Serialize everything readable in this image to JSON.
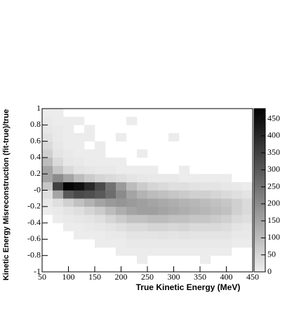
{
  "chart_data": {
    "type": "heatmap",
    "xlabel": "True Kinetic Energy (MeV)",
    "ylabel": "Kinetic Energy Misreconstruction (fit-true)/true",
    "xbins": [
      50,
      70,
      90,
      110,
      130,
      150,
      170,
      190,
      210,
      230,
      250,
      270,
      290,
      310,
      330,
      350,
      370,
      390,
      410,
      430,
      450
    ],
    "ybins": [
      -1,
      -0.9,
      -0.8,
      -0.7,
      -0.6,
      -0.5,
      -0.4,
      -0.3,
      -0.2,
      -0.1,
      0,
      0.1,
      0.2,
      0.3,
      0.4,
      0.5,
      0.6,
      0.7,
      0.8,
      0.9,
      1
    ],
    "values": [
      [
        0,
        0,
        0,
        0,
        0,
        0,
        0,
        0,
        0,
        0,
        0,
        0,
        0,
        0,
        0,
        0,
        0,
        0,
        0,
        0
      ],
      [
        0,
        0,
        0,
        0,
        0,
        0,
        0,
        0,
        0,
        5,
        0,
        0,
        0,
        0,
        0,
        5,
        0,
        0,
        0,
        0
      ],
      [
        0,
        0,
        0,
        0,
        0,
        0,
        0,
        5,
        5,
        5,
        5,
        5,
        5,
        5,
        5,
        5,
        5,
        5,
        0,
        0
      ],
      [
        0,
        0,
        0,
        0,
        0,
        5,
        5,
        5,
        10,
        10,
        10,
        10,
        10,
        10,
        10,
        10,
        10,
        10,
        5,
        5
      ],
      [
        0,
        0,
        0,
        5,
        5,
        5,
        10,
        10,
        20,
        20,
        20,
        25,
        20,
        25,
        20,
        20,
        20,
        20,
        10,
        10
      ],
      [
        0,
        0,
        5,
        5,
        10,
        15,
        20,
        30,
        40,
        40,
        50,
        50,
        45,
        50,
        40,
        40,
        40,
        35,
        20,
        15
      ],
      [
        0,
        5,
        10,
        15,
        20,
        30,
        50,
        70,
        90,
        90,
        100,
        100,
        90,
        90,
        80,
        80,
        70,
        60,
        40,
        30
      ],
      [
        5,
        10,
        20,
        30,
        50,
        70,
        100,
        130,
        150,
        160,
        160,
        150,
        140,
        130,
        120,
        110,
        100,
        90,
        60,
        40
      ],
      [
        10,
        30,
        60,
        90,
        120,
        150,
        170,
        180,
        170,
        160,
        150,
        140,
        130,
        120,
        110,
        100,
        90,
        80,
        60,
        40
      ],
      [
        30,
        150,
        300,
        330,
        320,
        300,
        260,
        200,
        150,
        120,
        100,
        90,
        80,
        70,
        60,
        60,
        50,
        40,
        30,
        20
      ],
      [
        80,
        350,
        470,
        450,
        400,
        330,
        250,
        170,
        100,
        70,
        50,
        40,
        30,
        30,
        25,
        20,
        20,
        15,
        10,
        5
      ],
      [
        150,
        200,
        150,
        100,
        70,
        50,
        40,
        30,
        20,
        15,
        10,
        10,
        10,
        5,
        5,
        5,
        5,
        5,
        0,
        0
      ],
      [
        150,
        80,
        40,
        20,
        15,
        10,
        10,
        5,
        5,
        5,
        5,
        0,
        0,
        5,
        0,
        0,
        0,
        0,
        0,
        0
      ],
      [
        100,
        40,
        15,
        10,
        5,
        5,
        5,
        5,
        0,
        0,
        0,
        0,
        0,
        0,
        0,
        0,
        0,
        0,
        0,
        0
      ],
      [
        60,
        20,
        10,
        5,
        5,
        5,
        0,
        0,
        0,
        5,
        0,
        0,
        0,
        0,
        0,
        0,
        0,
        0,
        0,
        0
      ],
      [
        40,
        15,
        5,
        5,
        0,
        5,
        0,
        0,
        0,
        0,
        0,
        0,
        0,
        0,
        0,
        0,
        0,
        0,
        0,
        0
      ],
      [
        25,
        10,
        5,
        5,
        5,
        0,
        0,
        5,
        0,
        0,
        0,
        0,
        5,
        0,
        0,
        0,
        0,
        0,
        0,
        0
      ],
      [
        15,
        10,
        5,
        0,
        5,
        0,
        0,
        0,
        0,
        0,
        0,
        0,
        0,
        0,
        0,
        0,
        0,
        0,
        0,
        0
      ],
      [
        10,
        5,
        5,
        5,
        0,
        0,
        0,
        0,
        5,
        0,
        0,
        0,
        0,
        0,
        0,
        0,
        0,
        0,
        0,
        0
      ],
      [
        5,
        5,
        0,
        0,
        0,
        0,
        0,
        0,
        0,
        0,
        0,
        0,
        0,
        0,
        0,
        0,
        0,
        0,
        0,
        0
      ]
    ],
    "xlim": [
      50,
      450
    ],
    "xticks": [
      50,
      100,
      150,
      200,
      250,
      300,
      350,
      400,
      450
    ],
    "ylim": [
      -1,
      1
    ],
    "yticks": [
      -1,
      -0.8,
      -0.6,
      -0.4,
      -0.2,
      {
        "value": 0,
        "label": "-0"
      },
      0.2,
      0.4,
      0.6,
      0.8,
      1
    ],
    "zlim": [
      0,
      480
    ],
    "zticks": [
      0,
      50,
      100,
      150,
      200,
      250,
      300,
      350,
      400,
      450
    ],
    "colormap": "gray"
  }
}
